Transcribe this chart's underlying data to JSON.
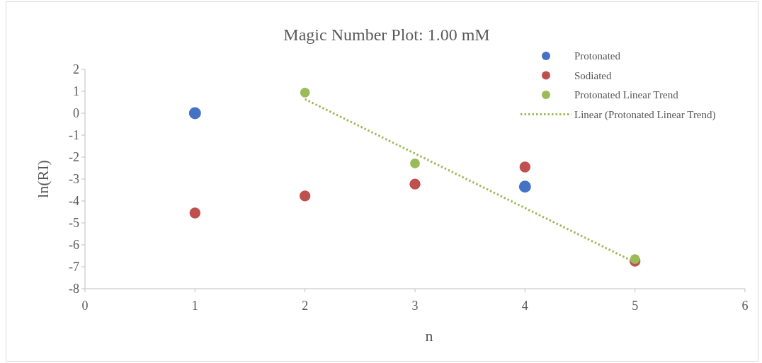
{
  "chart_data": {
    "type": "scatter",
    "title": "Magic Number Plot: 1.00 mM",
    "xlabel": "n",
    "ylabel": "ln(RI)",
    "x": [
      1,
      2,
      3,
      4,
      5
    ],
    "xlim": [
      0,
      6
    ],
    "xticks": [
      0,
      1,
      2,
      3,
      4,
      5,
      6
    ],
    "ylim": [
      -8,
      2
    ],
    "yticks": [
      -8,
      -7,
      -6,
      -5,
      -4,
      -3,
      -2,
      -1,
      0,
      1,
      2
    ],
    "grid": false,
    "legend": "top right",
    "marker": "circle",
    "series": [
      {
        "name": "Protonated",
        "color": "#4472c4",
        "values": [
          0,
          null,
          null,
          -3.35,
          null
        ]
      },
      {
        "name": "Sodiated",
        "color": "#c0504d",
        "values": [
          -4.55,
          -3.77,
          -3.23,
          -2.45,
          -6.74
        ]
      },
      {
        "name": "Protonated Linear Trend",
        "color": "#9bbb59",
        "values": [
          null,
          0.94,
          -2.29,
          null,
          -6.65
        ]
      },
      {
        "name": "Linear (Protonated Linear Trend)",
        "type": "line",
        "line_style": "dotted",
        "marker": "none",
        "color": "#9bbb59",
        "x": [
          2,
          5
        ],
        "values": [
          0.64,
          -6.8
        ]
      }
    ]
  }
}
